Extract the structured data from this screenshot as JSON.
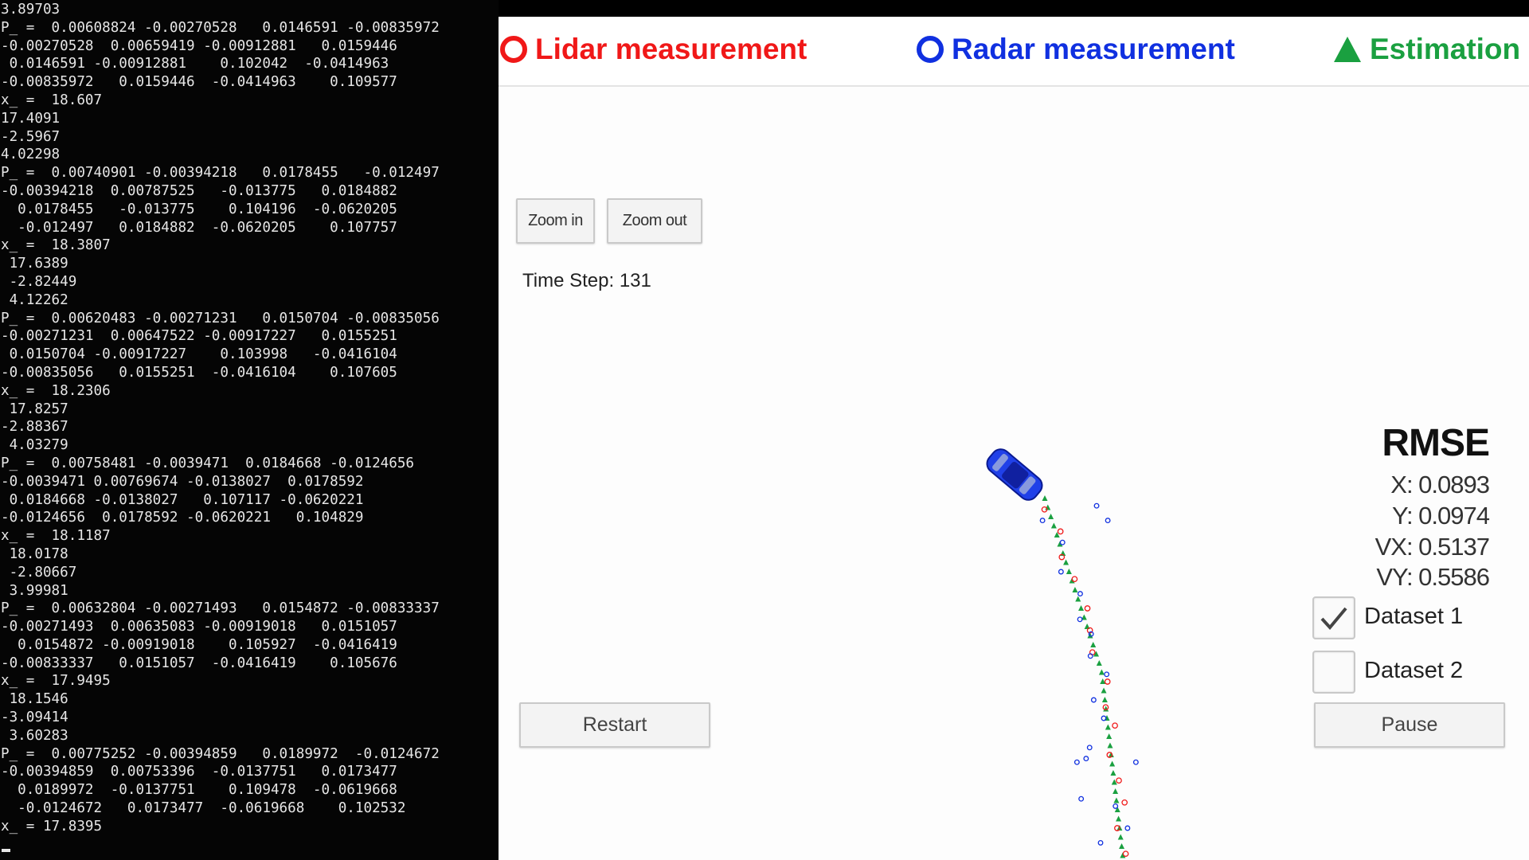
{
  "terminal": {
    "lines": [
      "3.89703",
      "P_ =  0.00608824 -0.00270528   0.0146591 -0.00835972",
      "-0.00270528  0.00659419 -0.00912881   0.0159446",
      " 0.0146591 -0.00912881    0.102042  -0.0414963",
      "-0.00835972   0.0159446  -0.0414963    0.109577",
      "x_ =  18.607",
      "17.4091",
      "-2.5967",
      "4.02298",
      "P_ =  0.00740901 -0.00394218   0.0178455   -0.012497",
      "-0.00394218  0.00787525   -0.013775   0.0184882",
      "  0.0178455   -0.013775    0.104196  -0.0620205",
      "  -0.012497   0.0184882  -0.0620205    0.107757",
      "x_ =  18.3807",
      " 17.6389",
      " -2.82449",
      " 4.12262",
      "P_ =  0.00620483 -0.00271231   0.0150704 -0.00835056",
      "-0.00271231  0.00647522 -0.00917227   0.0155251",
      " 0.0150704 -0.00917227    0.103998   -0.0416104",
      "-0.00835056   0.0155251  -0.0416104    0.107605",
      "x_ =  18.2306",
      " 17.8257",
      "-2.88367",
      " 4.03279",
      "P_ =  0.00758481 -0.0039471  0.0184668 -0.0124656",
      "-0.0039471 0.00769674 -0.0138027  0.0178592",
      " 0.0184668 -0.0138027   0.107117 -0.0620221",
      "-0.0124656  0.0178592 -0.0620221   0.104829",
      "x_ =  18.1187",
      " 18.0178",
      " -2.80667",
      " 3.99981",
      "P_ =  0.00632804 -0.00271493   0.0154872 -0.00833337",
      "-0.00271493  0.00635083 -0.00919018   0.0151057",
      "  0.0154872 -0.00919018    0.105927  -0.0416419",
      "-0.00833337   0.0151057  -0.0416419    0.105676",
      "x_ =  17.9495",
      " 18.1546",
      "-3.09414",
      " 3.60283",
      "P_ =  0.00775252 -0.00394859   0.0189972  -0.0124672",
      "-0.00394859  0.00753396  -0.0137751   0.0173477",
      "  0.0189972  -0.0137751    0.109478  -0.0619668",
      "  -0.0124672   0.0173477  -0.0619668    0.102532",
      "x_ = 17.8395"
    ]
  },
  "legend": {
    "lidar_label": "Lidar measurement",
    "radar_label": "Radar measurement",
    "estimation_label": "Estimation"
  },
  "buttons": {
    "zoom_in": "Zoom in",
    "zoom_out": "Zoom out",
    "restart": "Restart",
    "pause": "Pause"
  },
  "time_step": "Time Step: 131",
  "rmse": {
    "title": "RMSE",
    "x": "X: 0.0893",
    "y": "Y: 0.0974",
    "vx": "VX: 0.5137",
    "vy": "VY: 0.5586"
  },
  "datasets": [
    {
      "label": "Dataset 1",
      "checked": true
    },
    {
      "label": "Dataset 2",
      "checked": false
    }
  ],
  "colors": {
    "lidar": "#f01818",
    "radar": "#1030e0",
    "estimation": "#1aa040",
    "car": "#2040e8",
    "terminal_bg": "#050505",
    "terminal_text": "#e6e6e6"
  },
  "icons": {
    "lidar": "red-circle-icon",
    "radar": "blue-circle-icon",
    "estimation": "green-triangle-icon",
    "car": "car-icon",
    "check": "checkmark-icon"
  }
}
